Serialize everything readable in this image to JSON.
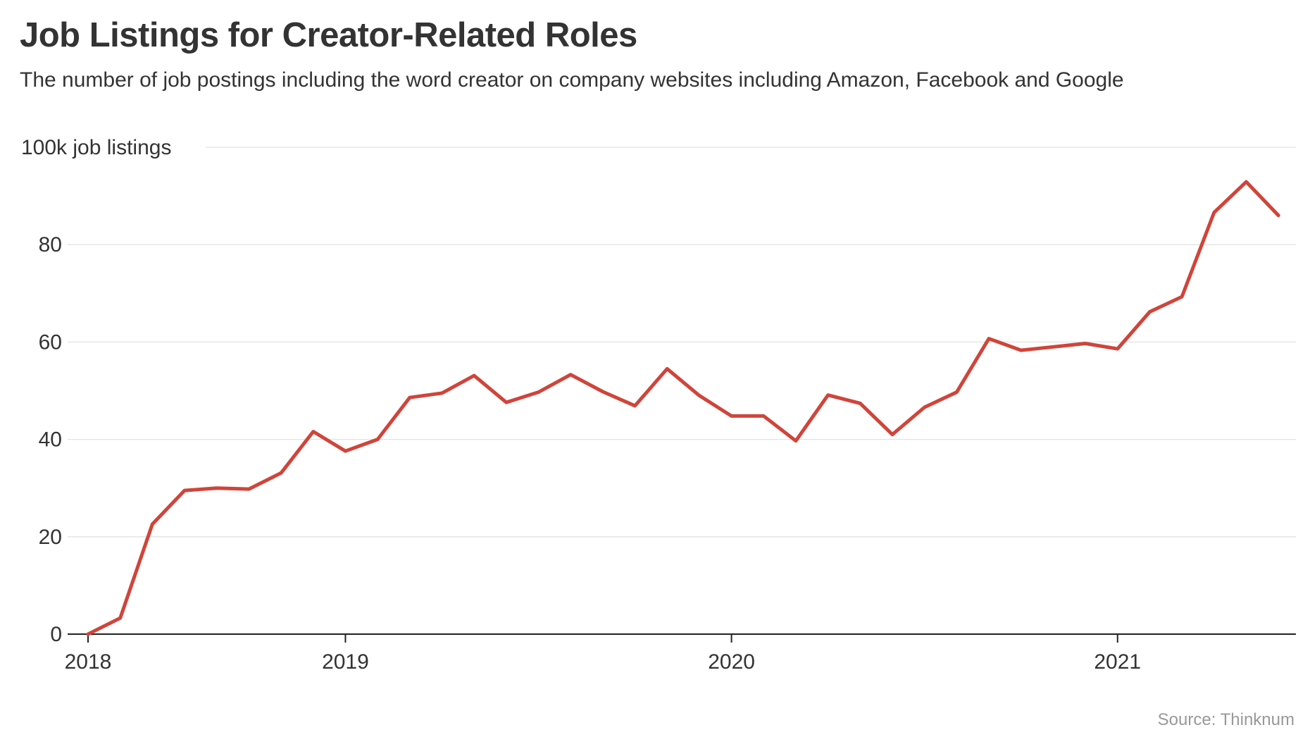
{
  "chart_data": {
    "type": "line",
    "title": "Job Listings for Creator-Related Roles",
    "subtitle": "The number of job postings including the word creator on company websites including Amazon, Facebook and Google",
    "ylabel": "100k job listings",
    "source": "Source: Thinknum",
    "ylim": [
      0,
      100
    ],
    "yticks": [
      0,
      20,
      40,
      60,
      80,
      100
    ],
    "ytick_labels": [
      "0",
      "20",
      "40",
      "60",
      "80",
      "100k job listings"
    ],
    "xtick_labels": [
      {
        "label": "2018",
        "x": "2018-05"
      },
      {
        "label": "2019",
        "x": "2019-01"
      },
      {
        "label": "2020",
        "x": "2020-01"
      },
      {
        "label": "2021",
        "x": "2021-01"
      }
    ],
    "grid": true,
    "color": "#d0443a",
    "x": [
      "2018-05",
      "2018-06",
      "2018-07",
      "2018-08",
      "2018-09",
      "2018-10",
      "2018-11",
      "2018-12",
      "2019-01",
      "2019-02",
      "2019-03",
      "2019-04",
      "2019-05",
      "2019-06",
      "2019-07",
      "2019-08",
      "2019-09",
      "2019-10",
      "2019-11",
      "2019-12",
      "2020-01",
      "2020-02",
      "2020-03",
      "2020-04",
      "2020-05",
      "2020-06",
      "2020-07",
      "2020-08",
      "2020-09",
      "2020-10",
      "2020-11",
      "2020-12",
      "2021-01",
      "2021-02",
      "2021-03",
      "2021-04",
      "2021-05",
      "2021-06"
    ],
    "values": [
      0,
      3.3,
      22.6,
      29.5,
      30,
      29.8,
      33.1,
      41.6,
      37.6,
      40,
      48.6,
      49.5,
      53.1,
      47.6,
      49.7,
      53.3,
      49.8,
      46.9,
      54.5,
      49,
      44.8,
      44.8,
      39.7,
      49.1,
      47.4,
      41,
      46.6,
      49.7,
      60.7,
      58.3,
      59,
      59.7,
      58.6,
      66.2,
      69.3,
      86.6,
      92.9,
      86
    ]
  }
}
